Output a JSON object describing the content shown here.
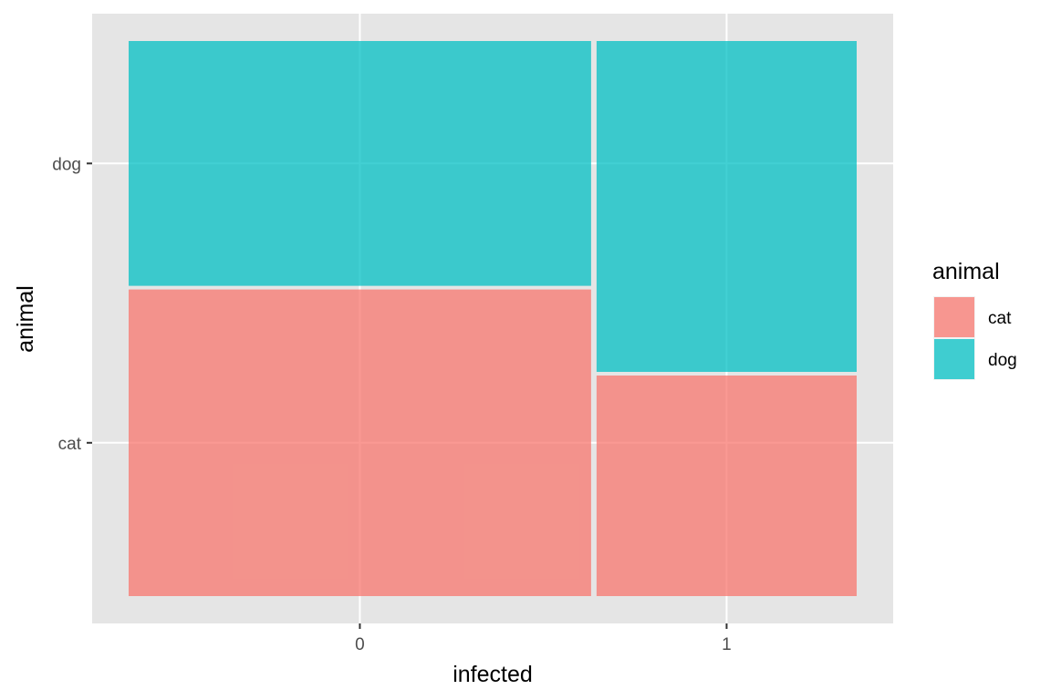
{
  "chart_data": {
    "type": "mosaic",
    "xlabel": "infected",
    "ylabel": "animal",
    "x_categories": [
      "0",
      "1"
    ],
    "y_categories": [
      "cat",
      "dog"
    ],
    "x_widths": [
      0.64,
      0.36
    ],
    "series": [
      {
        "name": "cat",
        "values": [
          0.556,
          0.4
        ]
      },
      {
        "name": "dog",
        "values": [
          0.444,
          0.6
        ]
      }
    ],
    "legend": {
      "title": "animal",
      "entries": [
        "cat",
        "dog"
      ],
      "position": "right"
    },
    "grid": true,
    "colors": {
      "cat": "#F8766D",
      "dog": "#00BFC4",
      "panel": "#E5E5E5",
      "grid": "#FFFFFF"
    }
  }
}
